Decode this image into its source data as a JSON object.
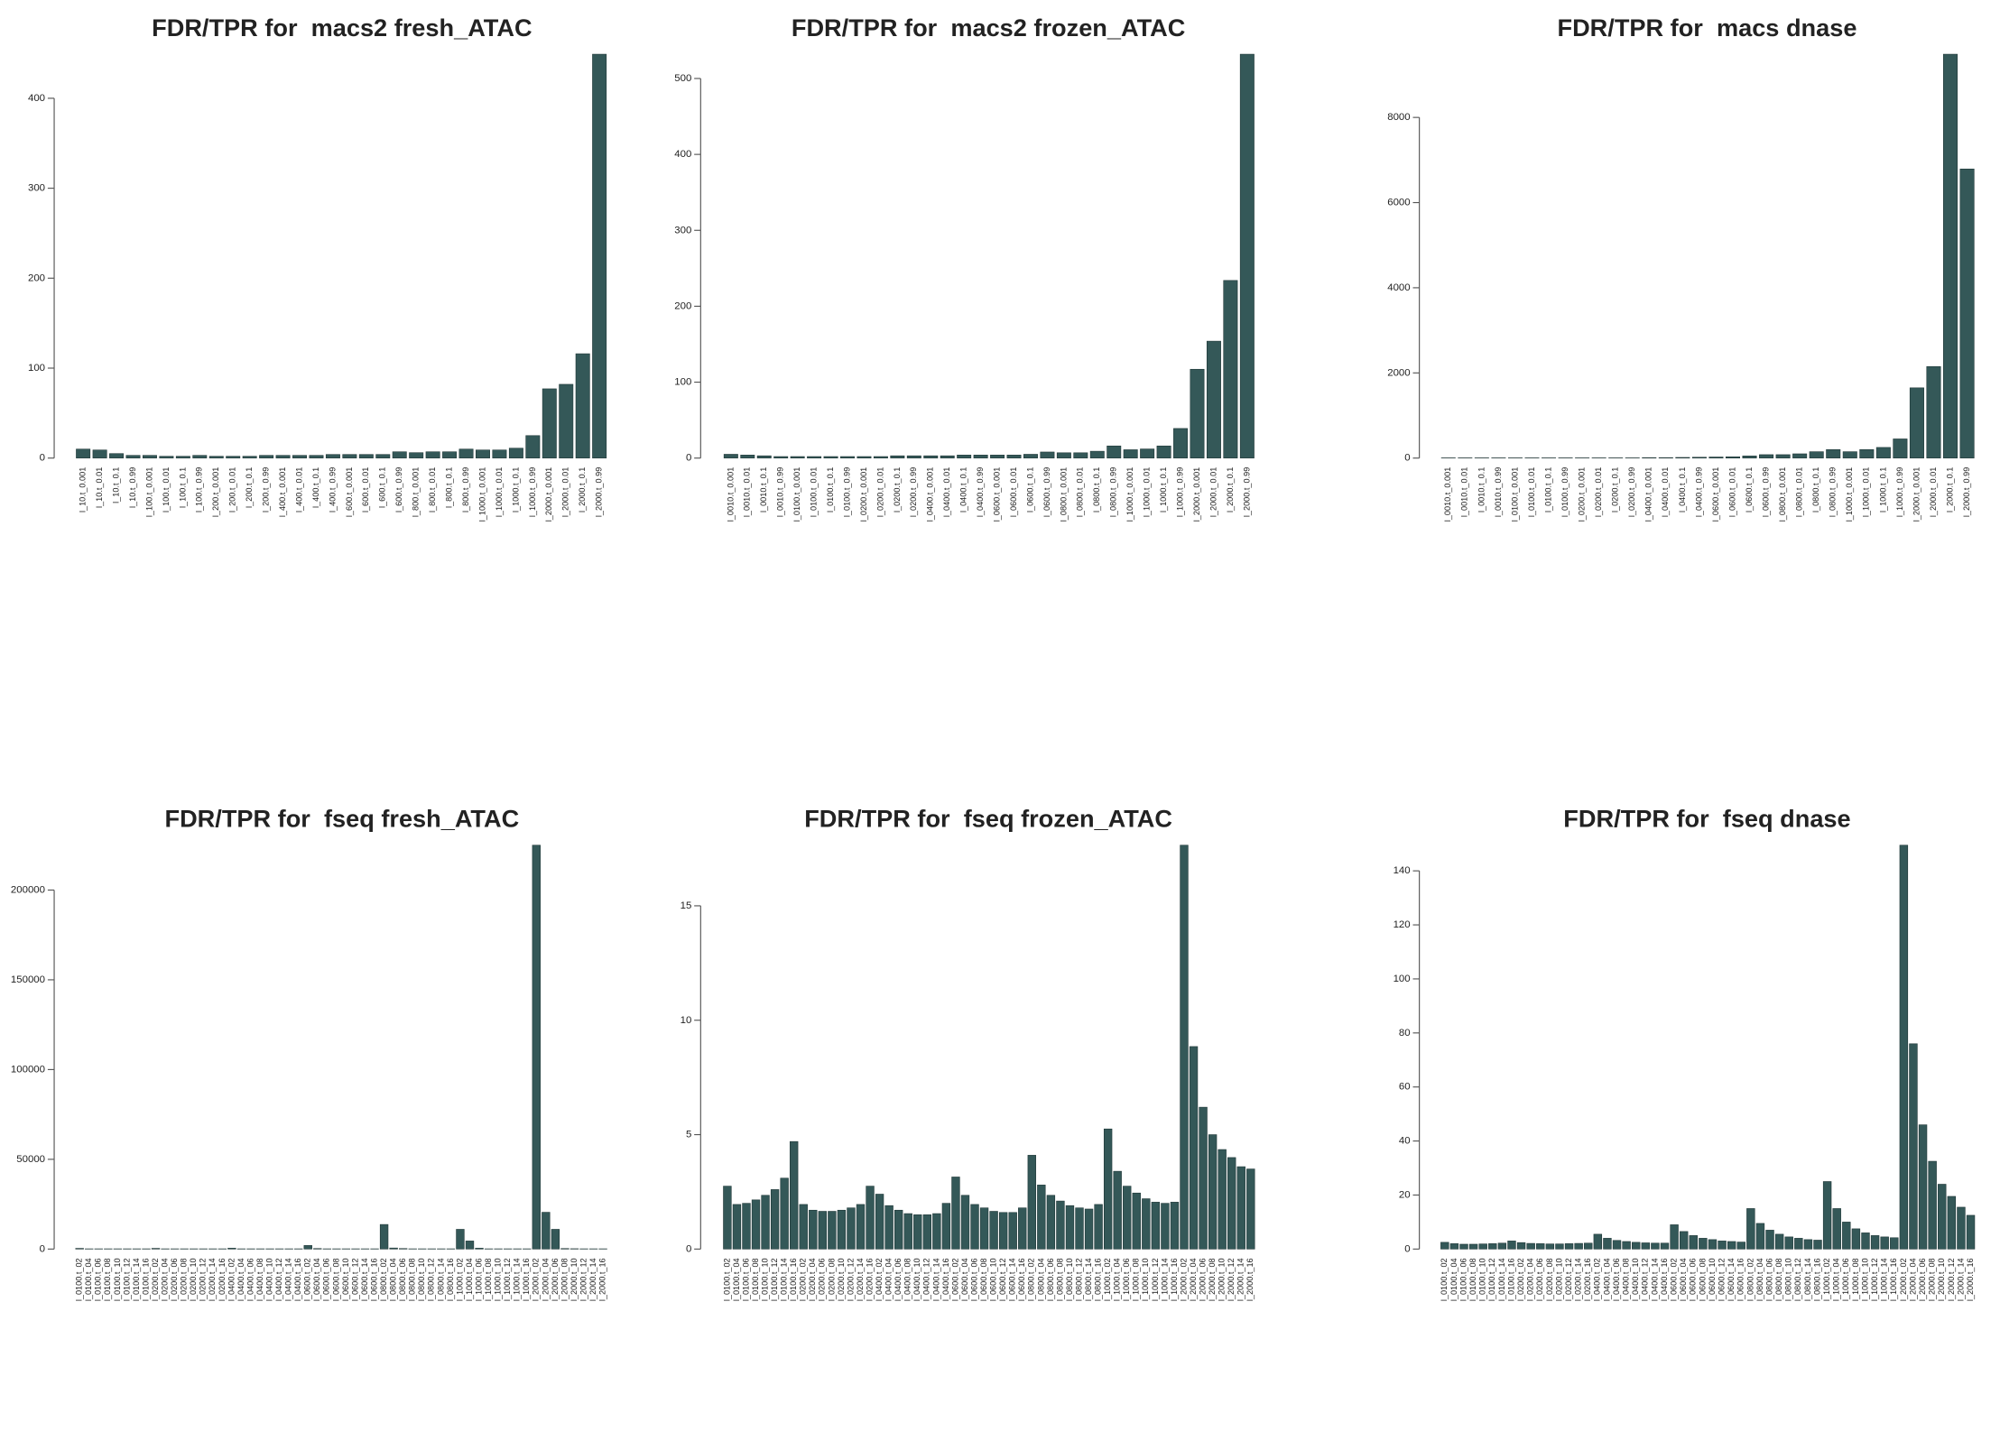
{
  "chart_data": [
    {
      "type": "bar",
      "title": "FDR/TPR for  macs2 fresh_ATAC",
      "color": "#345858",
      "categories": [
        "l_10.t_0.001",
        "l_10.t_0.01",
        "l_10.t_0.1",
        "l_10.t_0.99",
        "l_100.t_0.001",
        "l_100.t_0.01",
        "l_100.t_0.1",
        "l_100.t_0.99",
        "l_200.t_0.001",
        "l_200.t_0.01",
        "l_200.t_0.1",
        "l_200.t_0.99",
        "l_400.t_0.001",
        "l_400.t_0.01",
        "l_400.t_0.1",
        "l_400.t_0.99",
        "l_600.t_0.001",
        "l_600.t_0.01",
        "l_600.t_0.1",
        "l_600.t_0.99",
        "l_800.t_0.001",
        "l_800.t_0.01",
        "l_800.t_0.1",
        "l_800.t_0.99",
        "l_1000.t_0.001",
        "l_1000.t_0.01",
        "l_1000.t_0.1",
        "l_1000.t_0.99",
        "l_2000.t_0.001",
        "l_2000.t_0.01",
        "l_2000.t_0.1",
        "l_2000.t_0.99"
      ],
      "values": [
        10,
        9,
        5,
        3,
        3,
        2,
        2,
        3,
        2,
        2,
        2,
        3,
        3,
        3,
        3,
        4,
        4,
        4,
        4,
        7,
        6,
        7,
        7,
        10,
        9,
        9,
        11,
        25,
        77,
        82,
        116,
        449
      ],
      "ylim": [
        0,
        449
      ],
      "yticks": [
        0,
        100,
        200,
        300,
        400
      ]
    },
    {
      "type": "bar",
      "title": "FDR/TPR for  macs2 frozen_ATAC",
      "color": "#345858",
      "categories": [
        "l_0010.t_0.001",
        "l_0010.t_0.01",
        "l_0010.t_0.1",
        "l_0010.t_0.99",
        "l_0100.t_0.001",
        "l_0100.t_0.01",
        "l_0100.t_0.1",
        "l_0100.t_0.99",
        "l_0200.t_0.001",
        "l_0200.t_0.01",
        "l_0200.t_0.1",
        "l_0200.t_0.99",
        "l_0400.t_0.001",
        "l_0400.t_0.01",
        "l_0400.t_0.1",
        "l_0400.t_0.99",
        "l_0600.t_0.001",
        "l_0600.t_0.01",
        "l_0600.t_0.1",
        "l_0600.t_0.99",
        "l_0800.t_0.001",
        "l_0800.t_0.01",
        "l_0800.t_0.1",
        "l_0800.t_0.99",
        "l_1000.t_0.001",
        "l_1000.t_0.01",
        "l_1000.t_0.1",
        "l_1000.t_0.99",
        "l_2000.t_0.001",
        "l_2000.t_0.01",
        "l_2000.t_0.1",
        "l_2000.t_0.99"
      ],
      "values": [
        5,
        4,
        3,
        2,
        2,
        2,
        2,
        2,
        2,
        2,
        3,
        3,
        3,
        3,
        4,
        4,
        4,
        4,
        5,
        8,
        7,
        7,
        9,
        16,
        11,
        12,
        16,
        39,
        117,
        154,
        234,
        532
      ],
      "ylim": [
        0,
        532
      ],
      "yticks": [
        0,
        100,
        200,
        300,
        400,
        500
      ]
    },
    {
      "type": "bar",
      "title": "FDR/TPR for  macs dnase",
      "color": "#345858",
      "categories": [
        "l_0010.t_0.001",
        "l_0010.t_0.01",
        "l_0010.t_0.1",
        "l_0010.t_0.99",
        "l_0100.t_0.001",
        "l_0100.t_0.01",
        "l_0100.t_0.1",
        "l_0100.t_0.99",
        "l_0200.t_0.001",
        "l_0200.t_0.01",
        "l_0200.t_0.1",
        "l_0200.t_0.99",
        "l_0400.t_0.001",
        "l_0400.t_0.01",
        "l_0400.t_0.1",
        "l_0400.t_0.99",
        "l_0600.t_0.001",
        "l_0600.t_0.01",
        "l_0600.t_0.1",
        "l_0600.t_0.99",
        "l_0800.t_0.001",
        "l_0800.t_0.01",
        "l_0800.t_0.1",
        "l_0800.t_0.99",
        "l_1000.t_0.001",
        "l_1000.t_0.01",
        "l_1000.t_0.1",
        "l_1000.t_0.99",
        "l_2000.t_0.001",
        "l_2000.t_0.01",
        "l_2000.t_0.1",
        "l_2000.t_0.99"
      ],
      "values": [
        5,
        5,
        5,
        5,
        5,
        5,
        5,
        5,
        5,
        5,
        5,
        5,
        10,
        10,
        15,
        20,
        25,
        30,
        50,
        80,
        80,
        100,
        150,
        200,
        150,
        200,
        250,
        450,
        1650,
        2150,
        9485,
        6790
      ],
      "ylim": [
        0,
        9485
      ],
      "yticks": [
        0,
        2000,
        4000,
        6000,
        8000
      ]
    },
    {
      "type": "bar",
      "title": "FDR/TPR for  fseq fresh_ATAC",
      "color": "#345858",
      "categories": [
        "l_0100.t_02",
        "l_0100.t_04",
        "l_0100.t_06",
        "l_0100.t_08",
        "l_0100.t_10",
        "l_0100.t_12",
        "l_0100.t_14",
        "l_0100.t_16",
        "l_0200.t_02",
        "l_0200.t_04",
        "l_0200.t_06",
        "l_0200.t_08",
        "l_0200.t_10",
        "l_0200.t_12",
        "l_0200.t_14",
        "l_0200.t_16",
        "l_0400.t_02",
        "l_0400.t_04",
        "l_0400.t_06",
        "l_0400.t_08",
        "l_0400.t_10",
        "l_0400.t_12",
        "l_0400.t_14",
        "l_0400.t_16",
        "l_0600.t_02",
        "l_0600.t_04",
        "l_0600.t_06",
        "l_0600.t_08",
        "l_0600.t_10",
        "l_0600.t_12",
        "l_0600.t_14",
        "l_0600.t_16",
        "l_0800.t_02",
        "l_0800.t_04",
        "l_0800.t_06",
        "l_0800.t_08",
        "l_0800.t_10",
        "l_0800.t_12",
        "l_0800.t_14",
        "l_0800.t_16",
        "l_1000.t_02",
        "l_1000.t_04",
        "l_1000.t_06",
        "l_1000.t_08",
        "l_1000.t_10",
        "l_1000.t_12",
        "l_1000.t_14",
        "l_1000.t_16",
        "l_2000.t_02",
        "l_2000.t_04",
        "l_2000.t_06",
        "l_2000.t_08",
        "l_2000.t_10",
        "l_2000.t_12",
        "l_2000.t_14",
        "l_2000.t_16"
      ],
      "values": [
        400,
        150,
        150,
        150,
        150,
        150,
        150,
        150,
        400,
        150,
        150,
        150,
        150,
        150,
        150,
        150,
        500,
        150,
        150,
        150,
        150,
        150,
        150,
        150,
        2000,
        300,
        150,
        150,
        150,
        150,
        150,
        150,
        13700,
        600,
        300,
        150,
        150,
        150,
        150,
        150,
        11000,
        4500,
        500,
        150,
        150,
        150,
        150,
        150,
        225000,
        20500,
        11000,
        300,
        200,
        150,
        150,
        150
      ],
      "ylim": [
        0,
        225000
      ],
      "yticks": [
        0,
        50000,
        100000,
        150000,
        200000
      ]
    },
    {
      "type": "bar",
      "title": "FDR/TPR for  fseq frozen_ATAC",
      "color": "#345858",
      "categories": [
        "l_0100.t_02",
        "l_0100.t_04",
        "l_0100.t_06",
        "l_0100.t_08",
        "l_0100.t_10",
        "l_0100.t_12",
        "l_0100.t_14",
        "l_0100.t_16",
        "l_0200.t_02",
        "l_0200.t_04",
        "l_0200.t_06",
        "l_0200.t_08",
        "l_0200.t_10",
        "l_0200.t_12",
        "l_0200.t_14",
        "l_0200.t_16",
        "l_0400.t_02",
        "l_0400.t_04",
        "l_0400.t_06",
        "l_0400.t_08",
        "l_0400.t_10",
        "l_0400.t_12",
        "l_0400.t_14",
        "l_0400.t_16",
        "l_0600.t_02",
        "l_0600.t_04",
        "l_0600.t_06",
        "l_0600.t_08",
        "l_0600.t_10",
        "l_0600.t_12",
        "l_0600.t_14",
        "l_0600.t_16",
        "l_0800.t_02",
        "l_0800.t_04",
        "l_0800.t_06",
        "l_0800.t_08",
        "l_0800.t_10",
        "l_0800.t_12",
        "l_0800.t_14",
        "l_0800.t_16",
        "l_1000.t_02",
        "l_1000.t_04",
        "l_1000.t_06",
        "l_1000.t_08",
        "l_1000.t_10",
        "l_1000.t_12",
        "l_1000.t_14",
        "l_1000.t_16",
        "l_2000.t_02",
        "l_2000.t_04",
        "l_2000.t_06",
        "l_2000.t_08",
        "l_2000.t_10",
        "l_2000.t_12",
        "l_2000.t_14",
        "l_2000.t_16"
      ],
      "values": [
        2.75,
        1.95,
        2.0,
        2.15,
        2.35,
        2.6,
        3.1,
        4.7,
        1.95,
        1.7,
        1.65,
        1.65,
        1.7,
        1.8,
        1.95,
        2.75,
        2.4,
        1.9,
        1.7,
        1.55,
        1.5,
        1.5,
        1.55,
        2.0,
        3.15,
        2.35,
        1.95,
        1.8,
        1.65,
        1.6,
        1.6,
        1.8,
        4.1,
        2.8,
        2.35,
        2.1,
        1.9,
        1.8,
        1.75,
        1.95,
        5.25,
        3.4,
        2.75,
        2.45,
        2.2,
        2.05,
        2.0,
        2.05,
        17.65,
        8.85,
        6.2,
        5.0,
        4.35,
        4.0,
        3.6,
        3.5
      ],
      "ylim": [
        0,
        17.65
      ],
      "yticks": [
        0,
        5,
        10,
        15
      ]
    },
    {
      "type": "bar",
      "title": "FDR/TPR for  fseq dnase",
      "color": "#345858",
      "categories": [
        "l_0100.t_02",
        "l_0100.t_04",
        "l_0100.t_06",
        "l_0100.t_08",
        "l_0100.t_10",
        "l_0100.t_12",
        "l_0100.t_14",
        "l_0100.t_16",
        "l_0200.t_02",
        "l_0200.t_04",
        "l_0200.t_06",
        "l_0200.t_08",
        "l_0200.t_10",
        "l_0200.t_12",
        "l_0200.t_14",
        "l_0200.t_16",
        "l_0400.t_02",
        "l_0400.t_04",
        "l_0400.t_06",
        "l_0400.t_08",
        "l_0400.t_10",
        "l_0400.t_12",
        "l_0400.t_14",
        "l_0400.t_16",
        "l_0600.t_02",
        "l_0600.t_04",
        "l_0600.t_06",
        "l_0600.t_08",
        "l_0600.t_10",
        "l_0600.t_12",
        "l_0600.t_14",
        "l_0600.t_16",
        "l_0800.t_02",
        "l_0800.t_04",
        "l_0800.t_06",
        "l_0800.t_08",
        "l_0800.t_10",
        "l_0800.t_12",
        "l_0800.t_14",
        "l_0800.t_16",
        "l_1000.t_02",
        "l_1000.t_04",
        "l_1000.t_06",
        "l_1000.t_08",
        "l_1000.t_10",
        "l_1000.t_12",
        "l_1000.t_14",
        "l_1000.t_16",
        "l_2000.t_02",
        "l_2000.t_04",
        "l_2000.t_06",
        "l_2000.t_08",
        "l_2000.t_10",
        "l_2000.t_12",
        "l_2000.t_14",
        "l_2000.t_16"
      ],
      "values": [
        2.5,
        2.0,
        1.8,
        1.8,
        1.9,
        2.0,
        2.2,
        3.0,
        2.4,
        2.1,
        2.0,
        1.9,
        1.9,
        2.0,
        2.1,
        2.2,
        5.5,
        4.0,
        3.2,
        2.8,
        2.5,
        2.3,
        2.2,
        2.2,
        9.0,
        6.5,
        5.0,
        4.0,
        3.5,
        3.0,
        2.8,
        2.6,
        15,
        9.5,
        7.0,
        5.5,
        4.5,
        4.0,
        3.5,
        3.3,
        25,
        15,
        10,
        7.5,
        6,
        5,
        4.5,
        4.2,
        149.5,
        76,
        46,
        32.5,
        24,
        19.5,
        15.5,
        12.5
      ],
      "ylim": [
        0,
        149.5
      ],
      "yticks": [
        0,
        20,
        40,
        60,
        80,
        100,
        120,
        140
      ]
    }
  ]
}
